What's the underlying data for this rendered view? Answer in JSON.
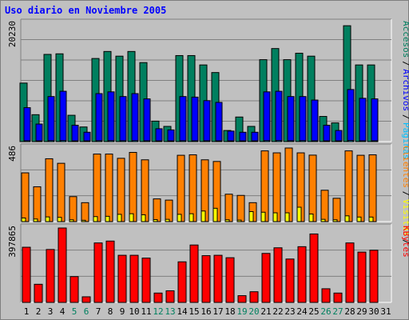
{
  "title": "Uso diario en Noviembre 2005",
  "colors": {
    "accesos": "#007f5f",
    "archivos": "#0000ff",
    "paginas": "#00bfff",
    "visitas": "#ffff00",
    "clientes": "#ff8000",
    "kbytes": "#ff0000",
    "weekend_day": "#00805f",
    "weekday": "#000000"
  },
  "chart_data": [
    {
      "type": "bar",
      "panel": "top",
      "y_max_label": "20230",
      "ylim": [
        0,
        20230
      ],
      "legend": [
        {
          "name": "Accesos",
          "sep": "/"
        },
        {
          "name": "Archivos",
          "sep": "/"
        },
        {
          "name": "Páginas",
          "sep": ""
        }
      ],
      "categories": [
        "1",
        "2",
        "3",
        "4",
        "5",
        "6",
        "7",
        "8",
        "9",
        "10",
        "11",
        "12",
        "13",
        "14",
        "15",
        "16",
        "17",
        "18",
        "19",
        "20",
        "21",
        "22",
        "23",
        "24",
        "25",
        "26",
        "27",
        "28",
        "29",
        "30",
        "31"
      ],
      "series": [
        {
          "name": "Accesos",
          "values": [
            10000,
            4600,
            14900,
            15000,
            4500,
            2500,
            14200,
            15400,
            14600,
            15400,
            13500,
            3500,
            2600,
            14700,
            14700,
            13100,
            11800,
            1900,
            4200,
            2600,
            14000,
            15900,
            14000,
            15100,
            14600,
            4300,
            3200,
            19800,
            13100,
            13100,
            0
          ]
        },
        {
          "name": "Archivos",
          "values": [
            5800,
            3000,
            7700,
            8600,
            2800,
            1600,
            8200,
            8500,
            7700,
            8200,
            7300,
            2200,
            2000,
            7700,
            7600,
            7000,
            6700,
            1800,
            1600,
            1600,
            8500,
            8600,
            7700,
            7700,
            7100,
            2800,
            1900,
            8900,
            7400,
            7300,
            0
          ]
        },
        {
          "name": "Páginas",
          "values": [
            150,
            90,
            170,
            180,
            70,
            50,
            160,
            170,
            160,
            170,
            150,
            60,
            50,
            160,
            150,
            150,
            140,
            40,
            50,
            40,
            170,
            180,
            160,
            170,
            150,
            60,
            50,
            190,
            150,
            150,
            0
          ]
        }
      ]
    },
    {
      "type": "bar",
      "panel": "middle",
      "y_max_label": "486",
      "ylim": [
        0,
        486
      ],
      "legend": [
        {
          "name": "Clientes",
          "sep": "/"
        },
        {
          "name": "Visitas",
          "sep": "/"
        }
      ],
      "categories": [
        "1",
        "2",
        "3",
        "4",
        "5",
        "6",
        "7",
        "8",
        "9",
        "10",
        "11",
        "12",
        "13",
        "14",
        "15",
        "16",
        "17",
        "18",
        "19",
        "20",
        "21",
        "22",
        "23",
        "24",
        "25",
        "26",
        "27",
        "28",
        "29",
        "30",
        "31"
      ],
      "series": [
        {
          "name": "Clientes",
          "values": [
            322,
            230,
            415,
            385,
            165,
            125,
            446,
            446,
            418,
            457,
            408,
            150,
            142,
            438,
            441,
            408,
            397,
            181,
            173,
            125,
            467,
            454,
            486,
            454,
            439,
            207,
            154,
            467,
            438,
            441,
            0
          ]
        },
        {
          "name": "Visitas",
          "values": [
            24,
            17,
            31,
            28,
            12,
            9,
            33,
            35,
            48,
            52,
            45,
            13,
            15,
            48,
            52,
            70,
            88,
            12,
            10,
            66,
            62,
            58,
            58,
            95,
            50,
            15,
            12,
            38,
            30,
            30,
            0
          ]
        }
      ]
    },
    {
      "type": "bar",
      "panel": "bottom",
      "y_max_label": "397865",
      "ylim": [
        0,
        397865
      ],
      "legend": [
        {
          "name": "KBytes",
          "sep": ""
        }
      ],
      "categories": [
        "1",
        "2",
        "3",
        "4",
        "5",
        "6",
        "7",
        "8",
        "9",
        "10",
        "11",
        "12",
        "13",
        "14",
        "15",
        "16",
        "17",
        "18",
        "19",
        "20",
        "21",
        "22",
        "23",
        "24",
        "25",
        "26",
        "27",
        "28",
        "29",
        "30",
        "31"
      ],
      "series": [
        {
          "name": "KBytes",
          "values": [
            295000,
            97000,
            283000,
            397865,
            138000,
            30000,
            318000,
            328000,
            252000,
            252000,
            237000,
            50000,
            62000,
            217000,
            307000,
            250000,
            252000,
            239000,
            36000,
            57000,
            262000,
            292000,
            232000,
            298000,
            366000,
            73000,
            50000,
            318000,
            269000,
            279000,
            0
          ]
        }
      ]
    }
  ],
  "x_axis": {
    "labels": [
      "1",
      "2",
      "3",
      "4",
      "5",
      "6",
      "7",
      "8",
      "9",
      "10",
      "11",
      "12",
      "13",
      "14",
      "15",
      "16",
      "17",
      "18",
      "19",
      "20",
      "21",
      "22",
      "23",
      "24",
      "25",
      "26",
      "27",
      "28",
      "29",
      "30",
      "31"
    ],
    "weekend_days": [
      "5",
      "6",
      "12",
      "13",
      "19",
      "20",
      "26",
      "27"
    ]
  }
}
